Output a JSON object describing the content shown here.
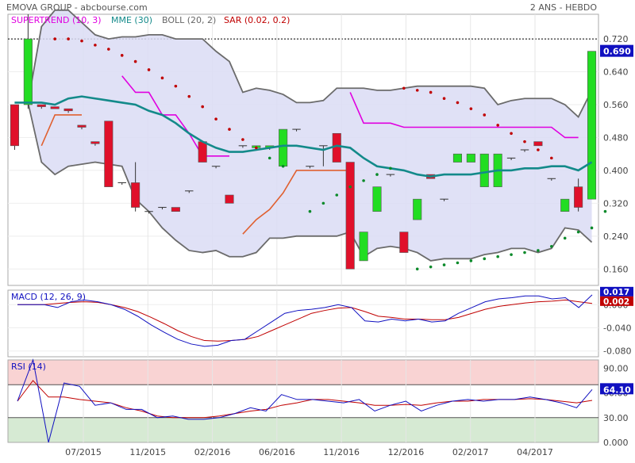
{
  "header": {
    "title": "EMOVA GROUP - abcbourse.com",
    "period": "2 ANS - HEBDO"
  },
  "legend": [
    {
      "label": "SUPERTREND (10, 3)",
      "color": "#e000e0"
    },
    {
      "label": "MME (30)",
      "color": "#138a8a"
    },
    {
      "label": "BOLL (20, 2)",
      "color": "#666666"
    },
    {
      "label": "SAR (0.02, 0.2)",
      "color": "#c00000"
    }
  ],
  "price_axis": {
    "ticks": [
      "0.720",
      "0.640",
      "0.560",
      "0.480",
      "0.400",
      "0.320",
      "0.240",
      "0.160"
    ],
    "min": 0.12,
    "max": 0.78,
    "last_value": "0.690",
    "last_color": "#1010c0",
    "reference_line": 0.72
  },
  "x_axis": {
    "labels": [
      "07/2015",
      "11/2015",
      "02/2016",
      "06/2016",
      "11/2016",
      "12/2016",
      "02/2017",
      "04/2017"
    ]
  },
  "chart_data": {
    "type": "candlestick",
    "candles": [
      {
        "o": 0.56,
        "h": 0.56,
        "l": 0.45,
        "c": 0.46
      },
      {
        "o": 0.56,
        "h": 0.78,
        "l": 0.55,
        "c": 0.72
      },
      {
        "o": 0.56,
        "h": 0.56,
        "l": 0.55,
        "c": 0.555
      },
      {
        "o": 0.555,
        "h": 0.555,
        "l": 0.55,
        "c": 0.55
      },
      {
        "o": 0.55,
        "h": 0.55,
        "l": 0.54,
        "c": 0.545
      },
      {
        "o": 0.51,
        "h": 0.51,
        "l": 0.5,
        "c": 0.505
      },
      {
        "o": 0.47,
        "h": 0.47,
        "l": 0.46,
        "c": 0.465
      },
      {
        "o": 0.52,
        "h": 0.52,
        "l": 0.36,
        "c": 0.36
      },
      {
        "o": 0.37,
        "h": 0.37,
        "l": 0.365,
        "c": 0.37
      },
      {
        "o": 0.37,
        "h": 0.42,
        "l": 0.3,
        "c": 0.31
      },
      {
        "o": 0.3,
        "h": 0.3,
        "l": 0.295,
        "c": 0.3
      },
      {
        "o": 0.31,
        "h": 0.31,
        "l": 0.305,
        "c": 0.31
      },
      {
        "o": 0.31,
        "h": 0.31,
        "l": 0.3,
        "c": 0.3
      },
      {
        "o": 0.35,
        "h": 0.35,
        "l": 0.345,
        "c": 0.35
      },
      {
        "o": 0.47,
        "h": 0.47,
        "l": 0.42,
        "c": 0.42
      },
      {
        "o": 0.41,
        "h": 0.41,
        "l": 0.405,
        "c": 0.41
      },
      {
        "o": 0.34,
        "h": 0.34,
        "l": 0.32,
        "c": 0.32
      },
      {
        "o": 0.46,
        "h": 0.46,
        "l": 0.455,
        "c": 0.46
      },
      {
        "o": 0.455,
        "h": 0.46,
        "l": 0.45,
        "c": 0.46
      },
      {
        "o": 0.455,
        "h": 0.46,
        "l": 0.45,
        "c": 0.46
      },
      {
        "o": 0.41,
        "h": 0.5,
        "l": 0.41,
        "c": 0.5
      },
      {
        "o": 0.5,
        "h": 0.5,
        "l": 0.495,
        "c": 0.5
      },
      {
        "o": 0.41,
        "h": 0.41,
        "l": 0.405,
        "c": 0.41
      },
      {
        "o": 0.46,
        "h": 0.46,
        "l": 0.41,
        "c": 0.46
      },
      {
        "o": 0.49,
        "h": 0.49,
        "l": 0.42,
        "c": 0.42
      },
      {
        "o": 0.42,
        "h": 0.42,
        "l": 0.16,
        "c": 0.16
      },
      {
        "o": 0.18,
        "h": 0.25,
        "l": 0.18,
        "c": 0.25
      },
      {
        "o": 0.3,
        "h": 0.36,
        "l": 0.3,
        "c": 0.36
      },
      {
        "o": 0.39,
        "h": 0.39,
        "l": 0.385,
        "c": 0.39
      },
      {
        "o": 0.25,
        "h": 0.25,
        "l": 0.2,
        "c": 0.2
      },
      {
        "o": 0.28,
        "h": 0.33,
        "l": 0.28,
        "c": 0.33
      },
      {
        "o": 0.39,
        "h": 0.39,
        "l": 0.38,
        "c": 0.38
      },
      {
        "o": 0.33,
        "h": 0.33,
        "l": 0.325,
        "c": 0.33
      },
      {
        "o": 0.42,
        "h": 0.44,
        "l": 0.42,
        "c": 0.44
      },
      {
        "o": 0.42,
        "h": 0.44,
        "l": 0.42,
        "c": 0.44
      },
      {
        "o": 0.36,
        "h": 0.44,
        "l": 0.36,
        "c": 0.44
      },
      {
        "o": 0.36,
        "h": 0.44,
        "l": 0.36,
        "c": 0.44
      },
      {
        "o": 0.43,
        "h": 0.43,
        "l": 0.425,
        "c": 0.43
      },
      {
        "o": 0.45,
        "h": 0.45,
        "l": 0.445,
        "c": 0.45
      },
      {
        "o": 0.47,
        "h": 0.47,
        "l": 0.46,
        "c": 0.46
      },
      {
        "o": 0.38,
        "h": 0.38,
        "l": 0.375,
        "c": 0.38
      },
      {
        "o": 0.3,
        "h": 0.33,
        "l": 0.3,
        "c": 0.33
      },
      {
        "o": 0.36,
        "h": 0.38,
        "l": 0.3,
        "c": 0.31
      },
      {
        "o": 0.33,
        "h": 0.69,
        "l": 0.33,
        "c": 0.69
      }
    ],
    "mme": [
      0.565,
      0.565,
      0.565,
      0.56,
      0.575,
      0.58,
      0.575,
      0.57,
      0.565,
      0.56,
      0.545,
      0.535,
      0.515,
      0.49,
      0.47,
      0.455,
      0.445,
      0.445,
      0.45,
      0.455,
      0.46,
      0.46,
      0.455,
      0.45,
      0.46,
      0.455,
      0.43,
      0.41,
      0.405,
      0.4,
      0.39,
      0.385,
      0.39,
      0.39,
      0.39,
      0.395,
      0.4,
      0.4,
      0.405,
      0.405,
      0.41,
      0.41,
      0.4,
      0.42
    ],
    "boll_upper": [
      0.565,
      0.565,
      0.75,
      0.79,
      0.79,
      0.76,
      0.73,
      0.72,
      0.725,
      0.725,
      0.73,
      0.73,
      0.72,
      0.72,
      0.72,
      0.69,
      0.665,
      0.59,
      0.6,
      0.595,
      0.585,
      0.565,
      0.565,
      0.57,
      0.6,
      0.6,
      0.6,
      0.595,
      0.595,
      0.6,
      0.605,
      0.605,
      0.605,
      0.605,
      0.605,
      0.6,
      0.56,
      0.57,
      0.575,
      0.575,
      0.575,
      0.56,
      0.53,
      0.595
    ],
    "boll_lower": [
      0.565,
      0.565,
      0.42,
      0.39,
      0.41,
      0.415,
      0.42,
      0.415,
      0.41,
      0.33,
      0.3,
      0.26,
      0.23,
      0.205,
      0.2,
      0.205,
      0.19,
      0.19,
      0.2,
      0.235,
      0.235,
      0.24,
      0.24,
      0.24,
      0.24,
      0.25,
      0.19,
      0.21,
      0.215,
      0.21,
      0.2,
      0.18,
      0.185,
      0.185,
      0.185,
      0.195,
      0.2,
      0.21,
      0.21,
      0.2,
      0.21,
      0.26,
      0.255,
      0.225
    ],
    "supertrend_upper": [
      null,
      null,
      null,
      null,
      null,
      null,
      null,
      null,
      0.63,
      0.59,
      0.59,
      0.535,
      0.535,
      0.49,
      0.435,
      0.435,
      0.435,
      null,
      null,
      null,
      null,
      null,
      null,
      null,
      null,
      0.59,
      0.515,
      0.515,
      0.515,
      0.505,
      0.505,
      0.505,
      0.505,
      0.505,
      0.505,
      0.505,
      0.505,
      0.505,
      0.505,
      0.505,
      0.505,
      0.48,
      0.48,
      null
    ],
    "supertrend_lower": [
      null,
      null,
      0.46,
      0.535,
      0.535,
      0.535,
      null,
      null,
      null,
      null,
      null,
      null,
      null,
      null,
      null,
      null,
      null,
      0.245,
      0.28,
      0.305,
      0.345,
      0.4,
      0.4,
      0.4,
      0.4,
      0.4,
      null,
      null,
      null,
      null,
      null,
      null,
      null,
      null,
      null,
      null,
      null,
      null,
      null,
      null,
      null,
      null,
      null,
      null
    ],
    "sar_points": [
      {
        "i": 3,
        "v": 0.72
      },
      {
        "i": 4,
        "v": 0.72
      },
      {
        "i": 5,
        "v": 0.715
      },
      {
        "i": 6,
        "v": 0.705
      },
      {
        "i": 7,
        "v": 0.695
      },
      {
        "i": 8,
        "v": 0.68
      },
      {
        "i": 9,
        "v": 0.665
      },
      {
        "i": 10,
        "v": 0.645
      },
      {
        "i": 11,
        "v": 0.625
      },
      {
        "i": 12,
        "v": 0.605
      },
      {
        "i": 13,
        "v": 0.58
      },
      {
        "i": 14,
        "v": 0.555
      },
      {
        "i": 15,
        "v": 0.525
      },
      {
        "i": 16,
        "v": 0.5
      },
      {
        "i": 17,
        "v": 0.475
      },
      {
        "i": 18,
        "v": 0.455
      },
      {
        "i": 19,
        "v": 0.43
      },
      {
        "i": 20,
        "v": 0.41
      },
      {
        "i": 22,
        "v": 0.3
      },
      {
        "i": 23,
        "v": 0.32
      },
      {
        "i": 24,
        "v": 0.34
      },
      {
        "i": 25,
        "v": 0.36
      },
      {
        "i": 26,
        "v": 0.375
      },
      {
        "i": 27,
        "v": 0.39
      },
      {
        "i": 28,
        "v": 0.405
      },
      {
        "i": 29,
        "v": 0.6
      },
      {
        "i": 30,
        "v": 0.595
      },
      {
        "i": 31,
        "v": 0.59
      },
      {
        "i": 32,
        "v": 0.575
      },
      {
        "i": 33,
        "v": 0.565
      },
      {
        "i": 34,
        "v": 0.55
      },
      {
        "i": 35,
        "v": 0.535
      },
      {
        "i": 36,
        "v": 0.51
      },
      {
        "i": 37,
        "v": 0.49
      },
      {
        "i": 38,
        "v": 0.47
      },
      {
        "i": 39,
        "v": 0.45
      },
      {
        "i": 40,
        "v": 0.43
      },
      {
        "i": 30,
        "v": 0.16
      },
      {
        "i": 31,
        "v": 0.165
      },
      {
        "i": 32,
        "v": 0.17
      },
      {
        "i": 33,
        "v": 0.175
      },
      {
        "i": 34,
        "v": 0.18
      },
      {
        "i": 35,
        "v": 0.185
      },
      {
        "i": 36,
        "v": 0.19
      },
      {
        "i": 37,
        "v": 0.195
      },
      {
        "i": 38,
        "v": 0.2
      },
      {
        "i": 39,
        "v": 0.205
      },
      {
        "i": 40,
        "v": 0.215
      },
      {
        "i": 41,
        "v": 0.235
      },
      {
        "i": 42,
        "v": 0.25
      },
      {
        "i": 43,
        "v": 0.26
      },
      {
        "i": 44,
        "v": 0.3
      }
    ]
  },
  "macd": {
    "label": "MACD (12, 26, 9)",
    "ticks": [
      "0.000",
      "-0.040",
      "-0.080"
    ],
    "min": -0.09,
    "max": 0.025,
    "last_macd": "0.017",
    "last_signal": "0.002",
    "macd_color": "#1010c0",
    "signal_color": "#c00000",
    "macd_line": [
      0.0,
      0.0,
      0.0,
      -0.005,
      0.005,
      0.008,
      0.005,
      0.0,
      -0.008,
      -0.02,
      -0.035,
      -0.048,
      -0.06,
      -0.068,
      -0.072,
      -0.07,
      -0.062,
      -0.06,
      -0.045,
      -0.03,
      -0.015,
      -0.01,
      -0.008,
      -0.005,
      0.0,
      -0.005,
      -0.028,
      -0.03,
      -0.025,
      -0.028,
      -0.025,
      -0.03,
      -0.028,
      -0.015,
      -0.005,
      0.005,
      0.01,
      0.012,
      0.015,
      0.015,
      0.01,
      0.012,
      -0.005,
      0.017
    ],
    "signal_line": [
      0.0,
      0.0,
      0.0,
      0.002,
      0.004,
      0.005,
      0.004,
      0.0,
      -0.005,
      -0.012,
      -0.022,
      -0.033,
      -0.045,
      -0.055,
      -0.062,
      -0.063,
      -0.062,
      -0.06,
      -0.055,
      -0.045,
      -0.035,
      -0.025,
      -0.015,
      -0.01,
      -0.006,
      -0.005,
      -0.012,
      -0.02,
      -0.022,
      -0.025,
      -0.025,
      -0.026,
      -0.026,
      -0.022,
      -0.015,
      -0.008,
      -0.003,
      0.0,
      0.003,
      0.005,
      0.006,
      0.008,
      0.005,
      0.002
    ]
  },
  "rsi": {
    "label": "RSI (14)",
    "ticks": [
      "90.00",
      "60.00",
      "30.00",
      "0.000"
    ],
    "min": 0,
    "max": 100,
    "overbought": 70,
    "oversold": 30,
    "last_value": "64.10",
    "rsi_color": "#1010c0",
    "avg_color": "#c00000",
    "rsi_line": [
      50,
      100,
      0,
      72,
      68,
      45,
      48,
      40,
      40,
      30,
      32,
      28,
      28,
      30,
      35,
      42,
      38,
      58,
      52,
      52,
      50,
      48,
      52,
      38,
      45,
      50,
      38,
      45,
      50,
      52,
      50,
      52,
      52,
      55,
      52,
      48,
      42,
      64.1
    ],
    "avg_line": [
      50,
      75,
      55,
      55,
      52,
      50,
      48,
      42,
      38,
      32,
      30,
      30,
      30,
      32,
      35,
      38,
      40,
      45,
      48,
      52,
      52,
      50,
      48,
      45,
      45,
      46,
      45,
      48,
      50,
      50,
      52,
      52,
      52,
      53,
      52,
      50,
      48,
      51
    ]
  }
}
